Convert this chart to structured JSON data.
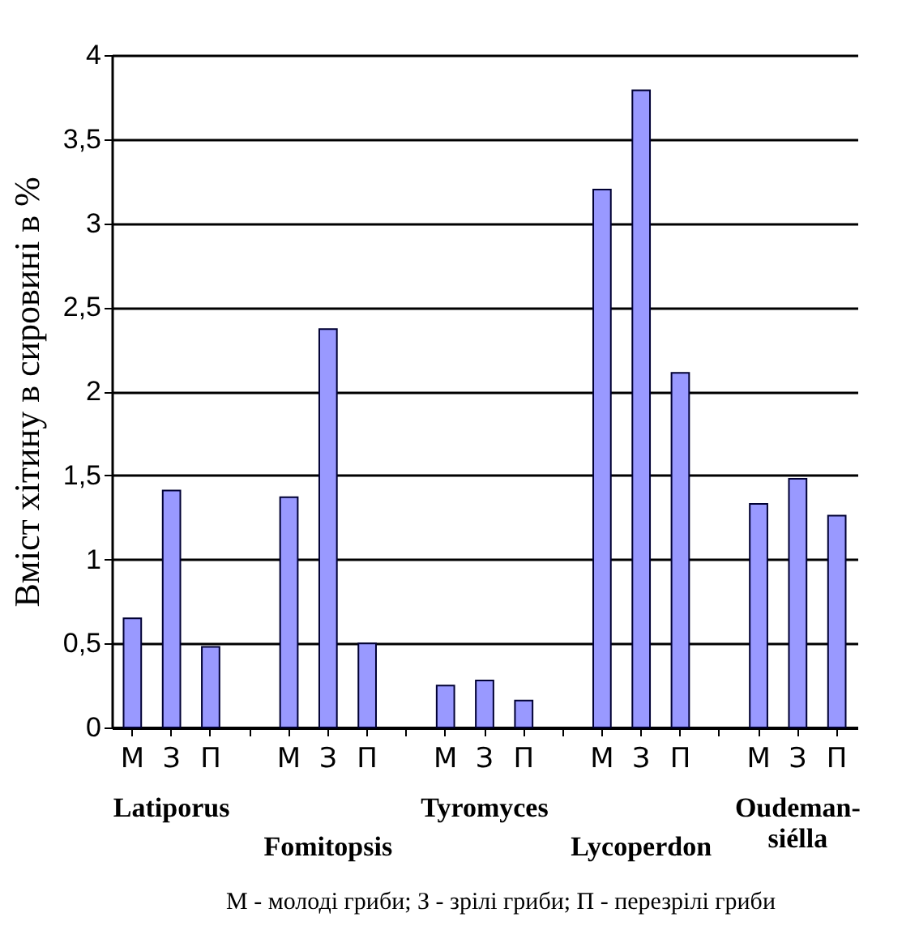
{
  "chart_data": {
    "type": "bar",
    "ylabel": "Вміст хітину в сировині в %",
    "categories": [
      "М",
      "З",
      "П",
      "М",
      "З",
      "П",
      "М",
      "З",
      "П",
      "М",
      "З",
      "П",
      "М",
      "З",
      "П"
    ],
    "series": [
      {
        "color": "#9999ff",
        "values": [
          0.65,
          1.41,
          0.48,
          1.37,
          2.37,
          0.5,
          0.25,
          0.28,
          0.16,
          3.2,
          3.79,
          2.11,
          1.33,
          1.48,
          1.26
        ]
      }
    ],
    "ylim": [
      0,
      4
    ],
    "yticks": [
      0,
      {
        "value": 0.5,
        "label": "0,5"
      },
      1,
      {
        "value": 1.5,
        "label": "1,5"
      },
      2,
      {
        "value": 2.5,
        "label": "2,5"
      },
      3,
      {
        "value": 3.5,
        "label": "3,5"
      },
      4
    ],
    "grid": "y",
    "annotations": [
      "Latiporus",
      "Fomitopsis",
      "Tyromyces",
      "Lycoperdon",
      "Oudeman-\nsiélla",
      "М - молоді гриби; З - зрілі гриби; П - перезрілі гриби"
    ]
  }
}
